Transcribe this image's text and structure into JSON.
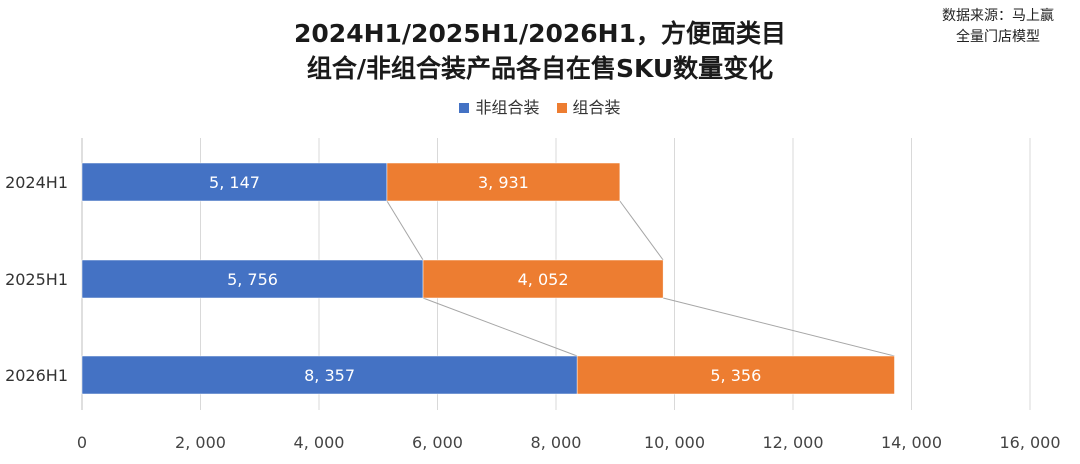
{
  "title_line1": "2024H1/2025H1/2026H1，方便面类目",
  "title_line2": "组合/非组合装产品各自在售SKU数量变化",
  "source_line1": "数据来源：马上赢",
  "source_line2": "全量门店模型",
  "chart_data": {
    "type": "bar",
    "orientation": "horizontal",
    "stacked": true,
    "categories": [
      "2024H1",
      "2025H1",
      "2026H1"
    ],
    "series": [
      {
        "name": "非组合装",
        "values": [
          5147,
          5756,
          8357
        ],
        "labels": [
          "5, 147",
          "5, 756",
          "8, 357"
        ],
        "color": "#4472C4"
      },
      {
        "name": "组合装",
        "values": [
          3931,
          4052,
          5356
        ],
        "labels": [
          "3, 931",
          "4, 052",
          "5, 356"
        ],
        "color": "#ED7D31"
      }
    ],
    "xlim": [
      0,
      16000
    ],
    "xticks": [
      0,
      2000,
      4000,
      6000,
      8000,
      10000,
      12000,
      14000,
      16000
    ],
    "xtick_labels": [
      "0",
      "2, 000",
      "4, 000",
      "6, 000",
      "8, 000",
      "10, 000",
      "12, 000",
      "14, 000",
      "16, 000"
    ],
    "gridlines": true,
    "series_connector_lines": true,
    "legend_position": "top"
  }
}
